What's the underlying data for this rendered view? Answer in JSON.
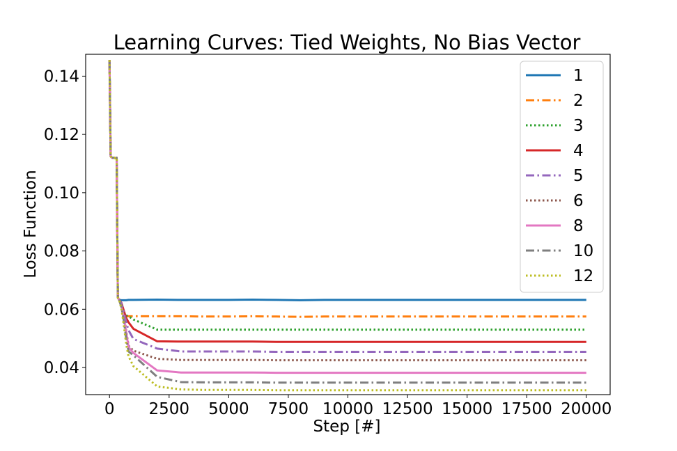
{
  "chart_data": {
    "type": "line",
    "title": "Learning Curves: Tied Weights, No Bias Vector",
    "xlabel": "Step [#]",
    "ylabel": "Loss Function",
    "xlim": [
      -1000,
      21000
    ],
    "ylim": [
      0.0307,
      0.1475
    ],
    "grid": false,
    "legend_position": "top-right",
    "x_ticks": [
      0,
      2500,
      5000,
      7500,
      10000,
      12500,
      15000,
      17500,
      20000
    ],
    "x_tick_labels": [
      "0",
      "2500",
      "5000",
      "7500",
      "10000",
      "12500",
      "15000",
      "17500",
      "20000"
    ],
    "y_ticks": [
      0.04,
      0.06,
      0.08,
      0.1,
      0.12,
      0.14
    ],
    "y_tick_labels": [
      "0.04",
      "0.06",
      "0.08",
      "0.10",
      "0.12",
      "0.14"
    ],
    "x": [
      0,
      50,
      100,
      150,
      200,
      250,
      300,
      350,
      400,
      500,
      600,
      700,
      800,
      1000,
      2000,
      3000,
      4000,
      5000,
      6000,
      7000,
      8000,
      9000,
      10000,
      11000,
      12000,
      13000,
      14000,
      15000,
      16000,
      17000,
      18000,
      19000,
      20000
    ],
    "series": [
      {
        "name": "1",
        "color": "#1f77b4",
        "dash": "solid",
        "values": [
          0.1455,
          0.1125,
          0.112,
          0.112,
          0.112,
          0.1118,
          0.112,
          0.064,
          0.0633,
          0.0631,
          0.0631,
          0.0631,
          0.0632,
          0.0632,
          0.0633,
          0.0632,
          0.0632,
          0.0632,
          0.0633,
          0.0632,
          0.0631,
          0.0632,
          0.0632,
          0.0632,
          0.0632,
          0.0632,
          0.0632,
          0.0632,
          0.0632,
          0.0632,
          0.0632,
          0.0632,
          0.0632
        ]
      },
      {
        "name": "2",
        "color": "#ff7f0e",
        "dash": "dashdot",
        "values": [
          0.1455,
          0.1125,
          0.112,
          0.112,
          0.112,
          0.1118,
          0.112,
          0.064,
          0.0633,
          0.0615,
          0.0585,
          0.0577,
          0.0576,
          0.0576,
          0.0576,
          0.0576,
          0.0575,
          0.0575,
          0.0576,
          0.0575,
          0.0574,
          0.0575,
          0.0575,
          0.0575,
          0.0575,
          0.0575,
          0.0575,
          0.0575,
          0.0575,
          0.0575,
          0.0575,
          0.0575,
          0.0575
        ]
      },
      {
        "name": "3",
        "color": "#2ca02c",
        "dash": "dotted",
        "values": [
          0.1455,
          0.1125,
          0.112,
          0.112,
          0.112,
          0.1118,
          0.112,
          0.064,
          0.0633,
          0.0612,
          0.0585,
          0.0578,
          0.0576,
          0.0565,
          0.053,
          0.053,
          0.053,
          0.053,
          0.053,
          0.053,
          0.053,
          0.053,
          0.053,
          0.053,
          0.053,
          0.053,
          0.053,
          0.053,
          0.053,
          0.053,
          0.053,
          0.053,
          0.053
        ]
      },
      {
        "name": "4",
        "color": "#d62728",
        "dash": "solid",
        "values": [
          0.1455,
          0.1125,
          0.112,
          0.112,
          0.112,
          0.1118,
          0.112,
          0.064,
          0.0633,
          0.0622,
          0.0595,
          0.057,
          0.0555,
          0.0533,
          0.049,
          0.0489,
          0.0489,
          0.0489,
          0.0489,
          0.0488,
          0.0488,
          0.0488,
          0.0488,
          0.0488,
          0.0488,
          0.0488,
          0.0488,
          0.0488,
          0.0488,
          0.0488,
          0.0488,
          0.0488,
          0.0488
        ]
      },
      {
        "name": "5",
        "color": "#9467bd",
        "dash": "dashdot",
        "values": [
          0.1455,
          0.1125,
          0.112,
          0.112,
          0.112,
          0.1118,
          0.112,
          0.064,
          0.0633,
          0.062,
          0.059,
          0.0555,
          0.0528,
          0.0498,
          0.0465,
          0.0455,
          0.0455,
          0.0455,
          0.0455,
          0.0454,
          0.0454,
          0.0454,
          0.0454,
          0.0454,
          0.0454,
          0.0454,
          0.0454,
          0.0454,
          0.0454,
          0.0454,
          0.0454,
          0.0454,
          0.0454
        ]
      },
      {
        "name": "6",
        "color": "#8c564b",
        "dash": "dotted",
        "values": [
          0.1455,
          0.1125,
          0.112,
          0.112,
          0.112,
          0.1118,
          0.112,
          0.064,
          0.0633,
          0.0615,
          0.058,
          0.0525,
          0.0475,
          0.0458,
          0.043,
          0.0426,
          0.0426,
          0.0426,
          0.0426,
          0.0425,
          0.0425,
          0.0425,
          0.0425,
          0.0425,
          0.0425,
          0.0425,
          0.0425,
          0.0425,
          0.0425,
          0.0425,
          0.0425,
          0.0425,
          0.0425
        ]
      },
      {
        "name": "8",
        "color": "#e377c2",
        "dash": "solid",
        "values": [
          0.1455,
          0.1125,
          0.112,
          0.112,
          0.112,
          0.1118,
          0.112,
          0.064,
          0.0633,
          0.061,
          0.057,
          0.052,
          0.047,
          0.045,
          0.039,
          0.0383,
          0.0383,
          0.0383,
          0.0383,
          0.0382,
          0.0382,
          0.0382,
          0.0382,
          0.0382,
          0.0382,
          0.0382,
          0.0382,
          0.0382,
          0.0382,
          0.0382,
          0.0382,
          0.0382,
          0.0382
        ]
      },
      {
        "name": "10",
        "color": "#7f7f7f",
        "dash": "dashdot",
        "values": [
          0.1455,
          0.1125,
          0.112,
          0.112,
          0.112,
          0.1118,
          0.112,
          0.064,
          0.0633,
          0.0608,
          0.056,
          0.05,
          0.0455,
          0.0442,
          0.0368,
          0.035,
          0.0349,
          0.0349,
          0.0349,
          0.0348,
          0.0348,
          0.0348,
          0.0348,
          0.0348,
          0.0348,
          0.0348,
          0.0348,
          0.0348,
          0.0348,
          0.0348,
          0.0348,
          0.0348,
          0.0348
        ]
      },
      {
        "name": "12",
        "color": "#bcbd22",
        "dash": "dotted",
        "values": [
          0.1455,
          0.1125,
          0.112,
          0.112,
          0.112,
          0.1118,
          0.112,
          0.064,
          0.0633,
          0.0602,
          0.0545,
          0.048,
          0.0438,
          0.0405,
          0.0335,
          0.0325,
          0.0323,
          0.0323,
          0.0323,
          0.0322,
          0.0322,
          0.0322,
          0.0322,
          0.0322,
          0.0322,
          0.0322,
          0.0322,
          0.0322,
          0.0322,
          0.0322,
          0.0322,
          0.0322,
          0.0322
        ]
      }
    ]
  }
}
